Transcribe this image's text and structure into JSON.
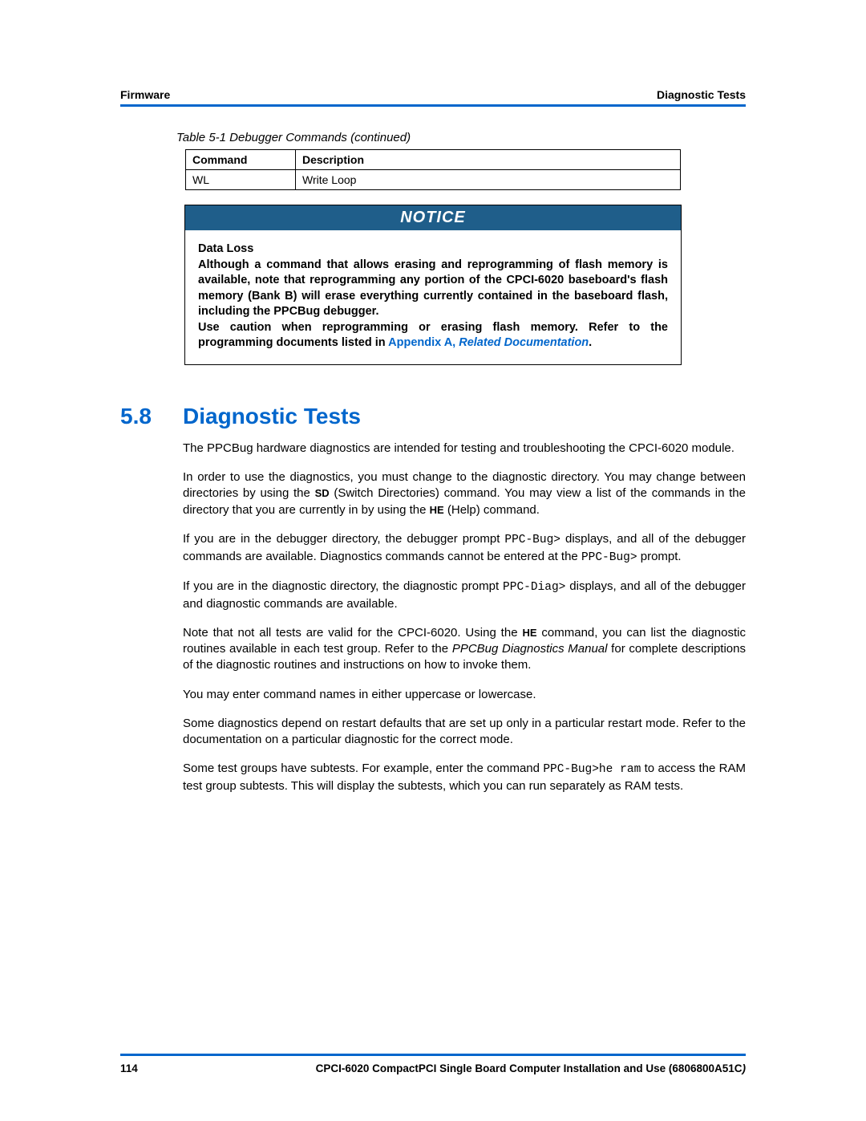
{
  "header": {
    "left": "Firmware",
    "right": "Diagnostic Tests"
  },
  "table": {
    "caption": "Table 5-1 Debugger Commands (continued)",
    "columns": [
      "Command",
      "Description"
    ],
    "rows": [
      [
        "WL",
        "Write Loop"
      ]
    ]
  },
  "notice": {
    "label": "NOTICE",
    "title": "Data Loss",
    "p1": "Although a command that allows erasing and reprogramming of flash memory is available, note that reprogramming any portion of the CPCI-6020 baseboard's flash memory (Bank B) will erase everything currently contained in the baseboard flash, including the PPCBug debugger.",
    "p2a": "Use caution when reprogramming or erasing flash memory. Refer to the programming documents listed in ",
    "link1": "Appendix A,",
    "link2": " Related Documentation",
    "p2b": "."
  },
  "section": {
    "num": "5.8",
    "title": "Diagnostic Tests"
  },
  "body": {
    "p1": "The PPCBug hardware diagnostics are intended for testing and troubleshooting the CPCI-6020 module.",
    "p2a": "In order to use the diagnostics, you must change to the diagnostic directory. You may change between directories by using the ",
    "sd": "SD",
    "p2b": " (Switch Directories) command. You may view a list of the commands in the directory that you are currently in by using the ",
    "he": "HE",
    "p2c": " (Help) command.",
    "p3a": "If you are in the debugger directory, the debugger prompt ",
    "ppcBug": "PPC-Bug>",
    "p3b": " displays, and all of the debugger commands are available. Diagnostics commands cannot be entered at the ",
    "ppcBug2": "PPC-Bug>",
    "p3c": "  prompt.",
    "p4a": "If you are in the diagnostic directory, the diagnostic prompt ",
    "ppcDiag": "PPC-Diag>",
    "p4b": " displays, and all of the debugger and diagnostic commands are available.",
    "p5a": "Note that not all tests are valid for the CPCI-6020. Using the ",
    "p5b": " command, you can list the diagnostic routines available in each test group. Refer to the ",
    "manual": "PPCBug Diagnostics Manual",
    "p5c": " for complete descriptions of the diagnostic routines and instructions on how to invoke them.",
    "p6": "You may enter command names in either uppercase or lowercase.",
    "p7": "Some diagnostics depend on restart defaults that are set up only in a particular restart mode. Refer to the documentation on a particular diagnostic for the correct mode.",
    "p8a": "Some test groups have subtests. For example, enter the command ",
    "heRam": "PPC-Bug>he ram",
    "p8b": " to access the RAM test group subtests. This will display the subtests, which you can run separately as RAM tests."
  },
  "footer": {
    "page": "114",
    "title": "CPCI-6020 CompactPCI Single Board Computer Installation and Use (6806800A51C",
    "paren": ")"
  },
  "colors": {
    "blue": "#0066cc",
    "noticeBg": "#1f5e8a"
  }
}
